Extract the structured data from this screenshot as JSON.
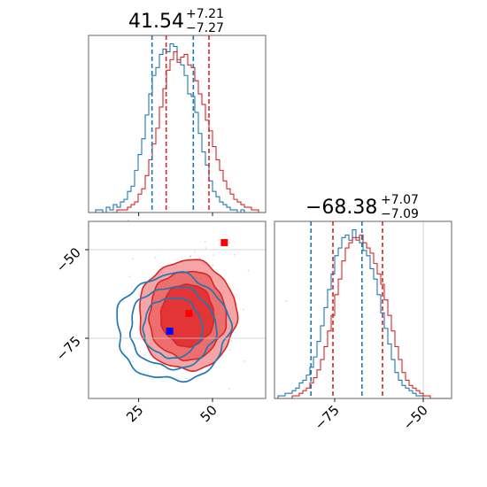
{
  "chart_data": {
    "type": "corner",
    "colors": {
      "series_a": "#1f77b4",
      "series_b": "#d62728"
    },
    "param1": {
      "title_main": "41.54",
      "title_plus": "+7.21",
      "title_minus": "−7.27",
      "range": [
        8,
        68
      ],
      "ticks": [
        25,
        50
      ],
      "tick_labels": [
        "25",
        "50"
      ],
      "grid": [],
      "hist_a": {
        "edges_start": 8,
        "bin_width": 1.2,
        "counts": [
          0,
          0,
          1,
          1,
          0,
          2,
          1,
          3,
          2,
          4,
          5,
          8,
          10,
          16,
          22,
          28,
          37,
          45,
          52,
          55,
          60,
          62,
          61,
          64,
          63,
          58,
          56,
          52,
          45,
          44,
          38,
          30,
          23,
          18,
          12,
          8,
          6,
          4,
          3,
          2,
          1,
          1,
          0,
          1,
          0,
          0,
          0,
          0,
          0,
          0
        ]
      },
      "hist_b": {
        "edges_start": 8,
        "bin_width": 1.2,
        "counts": [
          0,
          0,
          0,
          0,
          0,
          0,
          0,
          0,
          1,
          1,
          1,
          2,
          3,
          4,
          7,
          9,
          14,
          20,
          26,
          32,
          40,
          47,
          54,
          58,
          61,
          57,
          59,
          60,
          56,
          55,
          50,
          45,
          41,
          35,
          31,
          25,
          20,
          16,
          12,
          9,
          7,
          5,
          4,
          3,
          2,
          2,
          1,
          1,
          0,
          0
        ]
      },
      "quantiles_a": [
        29.5,
        43.5
      ],
      "quantiles_b": [
        34.3,
        48.8
      ]
    },
    "param2": {
      "title_main": "−68.38",
      "title_plus": "+7.07",
      "title_minus": "−7.09",
      "range": [
        -92,
        -42
      ],
      "ticks": [
        -75,
        -50
      ],
      "tick_labels": [
        "−75",
        "−50"
      ],
      "grid": [
        -50
      ],
      "hist_a": {
        "edges_start": -92,
        "bin_width": 1.0,
        "counts": [
          0,
          1,
          1,
          2,
          2,
          3,
          4,
          6,
          7,
          9,
          12,
          16,
          22,
          28,
          35,
          42,
          48,
          55,
          58,
          62,
          63,
          61,
          65,
          62,
          60,
          57,
          55,
          50,
          46,
          40,
          33,
          27,
          21,
          15,
          10,
          7,
          5,
          4,
          3,
          2,
          1,
          1,
          0,
          0,
          0,
          0,
          0,
          0,
          0,
          0
        ]
      },
      "hist_b": {
        "edges_start": -92,
        "bin_width": 1.0,
        "counts": [
          0,
          0,
          0,
          0,
          0,
          1,
          1,
          2,
          3,
          4,
          6,
          8,
          11,
          15,
          20,
          26,
          32,
          40,
          46,
          53,
          58,
          60,
          62,
          61,
          63,
          60,
          58,
          56,
          52,
          48,
          44,
          38,
          32,
          26,
          20,
          15,
          10,
          7,
          5,
          4,
          3,
          2,
          1,
          1,
          0,
          0,
          0,
          0,
          0,
          0
        ]
      },
      "quantiles_a": [
        -81.7,
        -67.3
      ],
      "quantiles_b": [
        -75.5,
        -61.5
      ]
    },
    "joint": {
      "x_range": [
        8,
        68
      ],
      "y_range": [
        -92,
        -42
      ],
      "xgrid": [],
      "ygrid": [
        -50,
        -75
      ],
      "markers": [
        {
          "x": 54,
          "y": -48,
          "color": "#ff0000"
        },
        {
          "x": 42,
          "y": -68,
          "color": "#ff0000"
        },
        {
          "x": 35.5,
          "y": -73,
          "color": "#0000ff"
        }
      ]
    }
  }
}
